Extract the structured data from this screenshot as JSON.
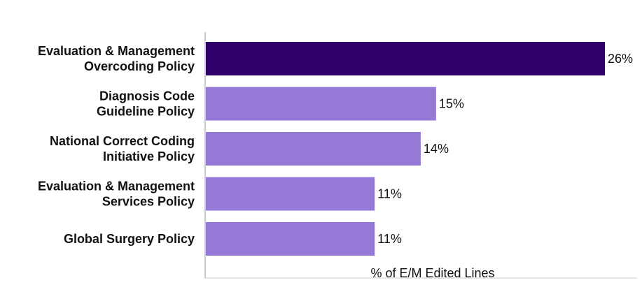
{
  "chart_data": {
    "type": "bar",
    "orientation": "horizontal",
    "categories": [
      [
        "Evaluation & Management",
        "Overcoding Policy"
      ],
      [
        "Diagnosis Code",
        "Guideline Policy"
      ],
      [
        "National Correct Coding",
        "Initiative Policy"
      ],
      [
        "Evaluation & Management",
        "Services Policy"
      ],
      [
        "Global Surgery Policy"
      ]
    ],
    "values": [
      26,
      15,
      14,
      11,
      11
    ],
    "value_labels": [
      "26%",
      "15%",
      "14%",
      "11%",
      "11%"
    ],
    "xlabel": "% of E/M Edited Lines",
    "title": "",
    "xlim": [
      0,
      28
    ],
    "grid": false,
    "legend": "none",
    "colors": {
      "highlight": "#32006a",
      "default": "#9679d6",
      "axis": "#cccccc"
    }
  }
}
